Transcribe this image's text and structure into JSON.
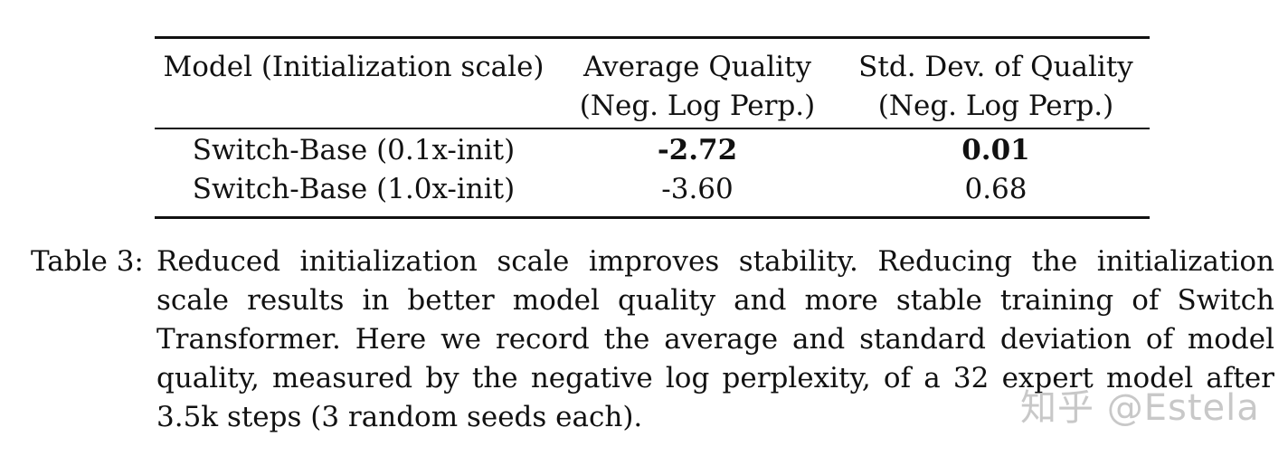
{
  "table": {
    "headers": [
      [
        "Model (Initialization scale)",
        "Average Quality",
        "Std. Dev. of Quality"
      ],
      [
        "",
        "(Neg. Log Perp.)",
        "(Neg. Log Perp.)"
      ]
    ],
    "rows": [
      {
        "model": "Switch-Base (0.1x-init)",
        "avg": "-2.72",
        "std": "0.01",
        "bold": true
      },
      {
        "model": "Switch-Base (1.0x-init)",
        "avg": "-3.60",
        "std": "0.68",
        "bold": false
      }
    ]
  },
  "caption": {
    "label": "Table 3:",
    "text": "Reduced initialization scale improves stability.  Reducing the initialization scale results in better model quality and more stable training of Switch Transformer. Here we record the average and standard deviation of model quality, measured by the negative log perplexity, of a 32 expert model after 3.5k steps (3 random seeds each)."
  },
  "watermark": "知乎 @Estela"
}
